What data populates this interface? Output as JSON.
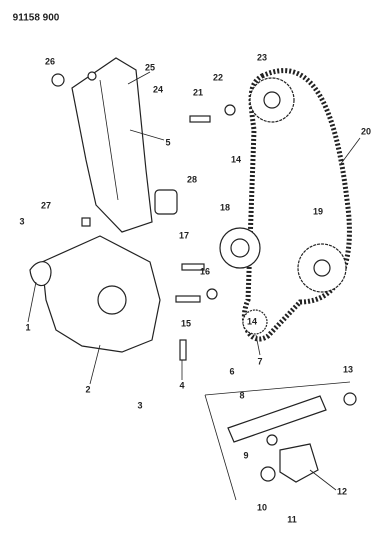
{
  "header": {
    "title": "91158 900"
  },
  "callouts": [
    {
      "label": "26"
    },
    {
      "label": "25"
    },
    {
      "label": "24"
    },
    {
      "label": "5"
    },
    {
      "label": "23"
    },
    {
      "label": "22"
    },
    {
      "label": "21"
    },
    {
      "label": "14"
    },
    {
      "label": "20"
    },
    {
      "label": "28"
    },
    {
      "label": "27"
    },
    {
      "label": "3"
    },
    {
      "label": "18"
    },
    {
      "label": "19"
    },
    {
      "label": "17"
    },
    {
      "label": "16"
    },
    {
      "label": "1"
    },
    {
      "label": "15"
    },
    {
      "label": "14"
    },
    {
      "label": "7"
    },
    {
      "label": "2"
    },
    {
      "label": "4"
    },
    {
      "label": "6"
    },
    {
      "label": "13"
    },
    {
      "label": "8"
    },
    {
      "label": "3"
    },
    {
      "label": "9"
    },
    {
      "label": "12"
    },
    {
      "label": "10"
    },
    {
      "label": "11"
    }
  ]
}
